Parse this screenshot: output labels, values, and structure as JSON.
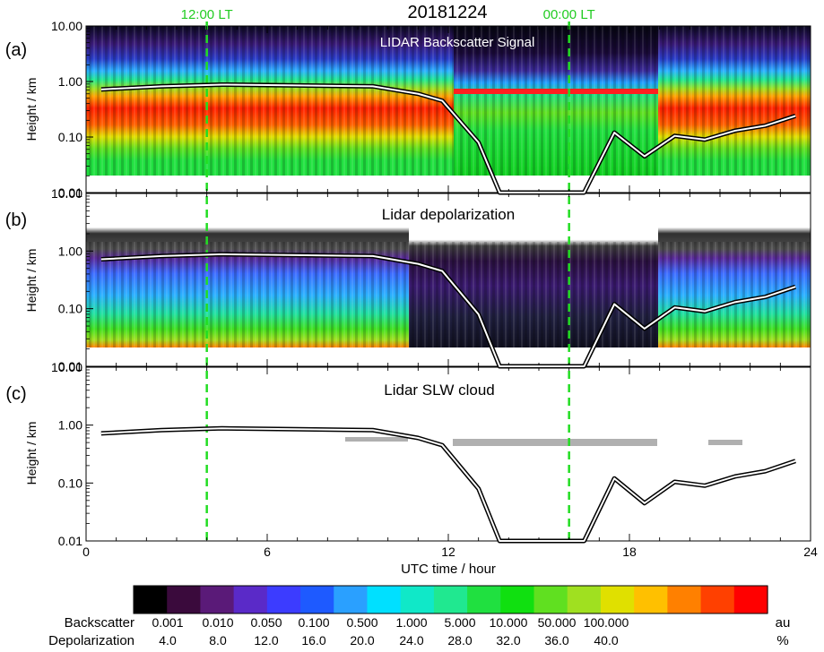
{
  "chart_data": {
    "type": "heatmap",
    "date": "20181224",
    "local_time_markers": [
      {
        "label": "12:00 LT",
        "x": 4.0
      },
      {
        "label": "00:00 LT",
        "x": 16.0
      }
    ],
    "xlabel": "UTC time / hour",
    "xlim": [
      0,
      24
    ],
    "xticks": [
      "0",
      "6",
      "12",
      "18",
      "24"
    ],
    "ylim": [
      0.01,
      10.0
    ],
    "yscale": "log",
    "yticks": [
      "0.01",
      "0.10",
      "1.00",
      "10.00"
    ],
    "panels": [
      {
        "letter": "(a)",
        "title": "LIDAR Backscatter Signal",
        "ylabel": "Height / km",
        "text_color": "#ffffff"
      },
      {
        "letter": "(b)",
        "title": "Lidar depolarization",
        "ylabel": "Height / km",
        "text_color": "#000000"
      },
      {
        "letter": "(c)",
        "title": "Lidar SLW cloud",
        "ylabel": "Height / km",
        "text_color": "#000000"
      }
    ],
    "boundary_line": {
      "x": [
        0.5,
        2.5,
        4.5,
        7.0,
        9.5,
        11.0,
        11.8,
        13.0,
        13.7,
        16.5,
        17.5,
        18.5,
        19.5,
        20.5,
        21.5,
        22.5,
        23.5
      ],
      "y": [
        0.72,
        0.82,
        0.88,
        0.85,
        0.82,
        0.6,
        0.45,
        0.08,
        0.01,
        0.01,
        0.12,
        0.045,
        0.105,
        0.09,
        0.13,
        0.16,
        0.24
      ]
    },
    "colorbar": {
      "colors": [
        "#000000",
        "#3a0a3c",
        "#5a1a78",
        "#5a2ac8",
        "#3c3cff",
        "#1e5aff",
        "#2aa0ff",
        "#00e0ff",
        "#10e8c8",
        "#20e890",
        "#20e040",
        "#10e010",
        "#60e020",
        "#a0e020",
        "#e0e000",
        "#ffc000",
        "#ff8000",
        "#ff4000",
        "#ff0000"
      ],
      "rows": [
        {
          "label": "Backscatter",
          "values": [
            "0.001",
            "0.010",
            "0.050",
            "0.100",
            "0.500",
            "1.000",
            "5.000",
            "10.000",
            "50.000",
            "100.000"
          ],
          "unit": "au"
        },
        {
          "label": "Depolarization",
          "values": [
            "4.0",
            "8.0",
            "12.0",
            "16.0",
            "20.0",
            "24.0",
            "28.0",
            "32.0",
            "36.0",
            "40.0"
          ],
          "unit": "%"
        }
      ]
    }
  }
}
